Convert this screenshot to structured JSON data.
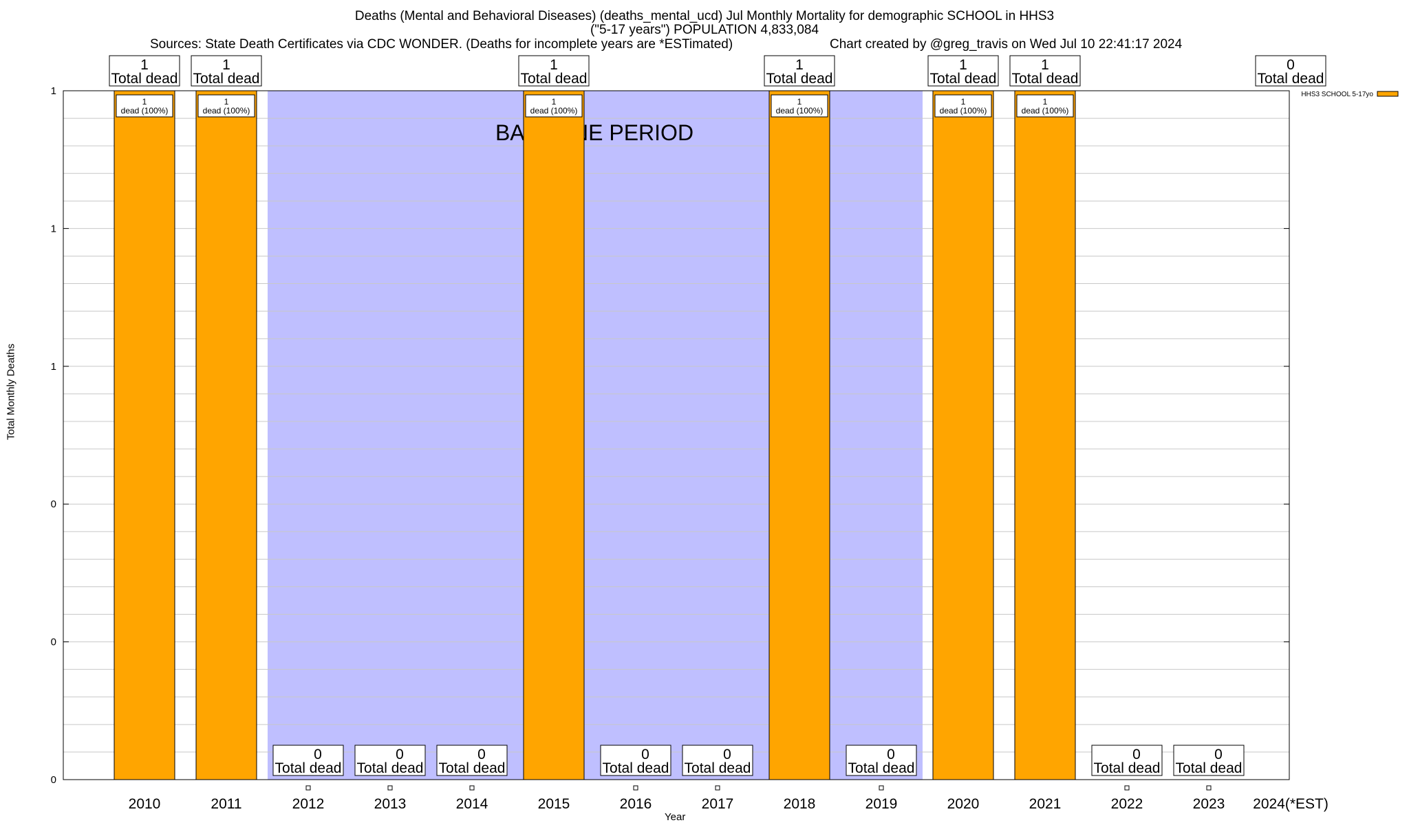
{
  "title_line1": "Deaths (Mental and Behavioral Diseases) (deaths_mental_ucd) Jul Monthly Mortality for demographic SCHOOL in HHS3",
  "title_line2": "(\"5-17 years\") POPULATION 4,833,084",
  "sources": "Sources: State Death Certificates via CDC WONDER. (Deaths for incomplete years are *ESTimated)",
  "credit": "Chart created by @greg_travis on Wed Jul 10 22:41:17 2024",
  "chart_data": {
    "type": "bar",
    "categories": [
      "2010",
      "2011",
      "2012",
      "2013",
      "2014",
      "2015",
      "2016",
      "2017",
      "2018",
      "2019",
      "2020",
      "2021",
      "2022",
      "2023",
      "2024(*EST)"
    ],
    "series": [
      {
        "name": "HHS3 SCHOOL 5-17yo",
        "values": [
          1,
          1,
          0,
          0,
          0,
          1,
          0,
          0,
          1,
          0,
          1,
          1,
          0,
          0,
          0
        ]
      }
    ],
    "top_labels": [
      "1",
      "1",
      "",
      "",
      "",
      "1",
      "",
      "",
      "1",
      "",
      "1",
      "1",
      "",
      "",
      "0"
    ],
    "bottom_labels": [
      "",
      "",
      "0",
      "0",
      "0",
      "",
      "0",
      "0",
      "",
      "0",
      "",
      "",
      "0",
      "0",
      ""
    ],
    "total_suffix": "Total dead",
    "bar_label": "1\ndead (100%)",
    "bar_label_line1": "1",
    "bar_label_line2": "dead (100%)",
    "ylabel": "Total Monthly Deaths",
    "xlabel": "Year",
    "ylim": [
      0,
      1
    ],
    "ytick_labels": [
      "0",
      "0",
      "0",
      "1",
      "1",
      "1"
    ],
    "baseline_label": "BASELINE PERIOD",
    "baseline_range": [
      "2012",
      "2019"
    ],
    "grid": true,
    "legend_position": "top-right",
    "colors": {
      "bar": "#ffa500",
      "baseline": "#bfbfff",
      "grid": "#c8c8c8"
    }
  }
}
